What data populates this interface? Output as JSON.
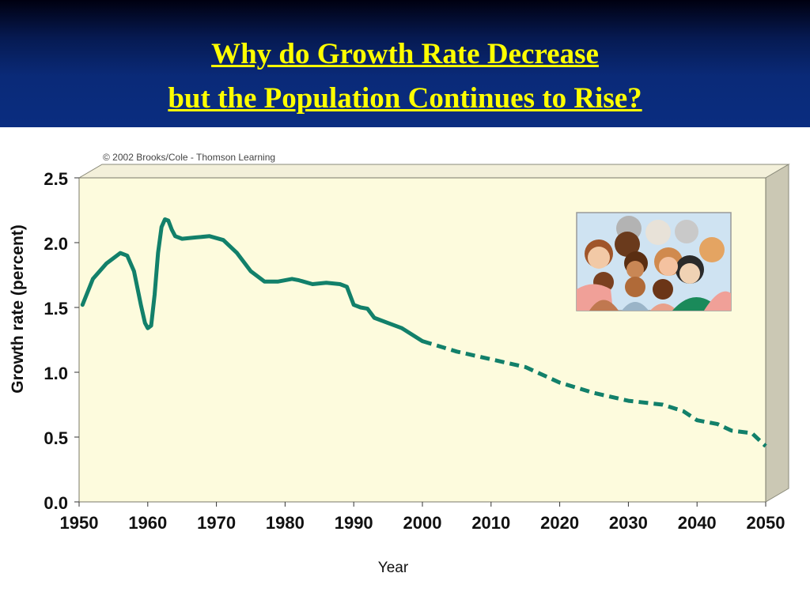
{
  "slide": {
    "title_line1": "Why do Growth Rate Decrease",
    "title_line2": "but the Population Continues to Rise?"
  },
  "colors": {
    "band": "#0a2a78",
    "title": "#ffff00",
    "plot_bg": "#fdfbdd",
    "line": "#12806a"
  },
  "illustration": {
    "icon": "crowd-of-people-icon"
  },
  "chart_data": {
    "type": "line",
    "title": "",
    "copyright": "© 2002 Brooks/Cole - Thomson Learning",
    "xlabel": "Year",
    "ylabel": "Growth rate (percent)",
    "xlim": [
      1950,
      2050
    ],
    "ylim": [
      0,
      2.5
    ],
    "xticks": [
      "1950",
      "1960",
      "1970",
      "1980",
      "1990",
      "2000",
      "2010",
      "2020",
      "2030",
      "2040",
      "2050"
    ],
    "yticks": [
      "0.0",
      "0.5",
      "1.0",
      "1.5",
      "2.0",
      "2.5"
    ],
    "grid": false,
    "series": [
      {
        "style": "solid",
        "x": [
          1950.5,
          1952,
          1954,
          1956,
          1957,
          1958,
          1959,
          1959.6,
          1960,
          1960.5,
          1961,
          1961.5,
          1962,
          1962.5,
          1963,
          1963.5,
          1964,
          1965,
          1967,
          1969,
          1971,
          1973,
          1975,
          1977,
          1979,
          1981,
          1982,
          1984,
          1986,
          1988,
          1989,
          1990,
          1991,
          1992,
          1993,
          1995,
          1997,
          2000
        ],
        "y": [
          1.52,
          1.72,
          1.84,
          1.92,
          1.9,
          1.78,
          1.52,
          1.38,
          1.34,
          1.36,
          1.6,
          1.92,
          2.12,
          2.18,
          2.17,
          2.1,
          2.05,
          2.03,
          2.04,
          2.05,
          2.02,
          1.92,
          1.78,
          1.7,
          1.7,
          1.72,
          1.71,
          1.68,
          1.69,
          1.68,
          1.66,
          1.52,
          1.5,
          1.49,
          1.42,
          1.38,
          1.34,
          1.24
        ]
      },
      {
        "style": "dashed",
        "x": [
          2000,
          2005,
          2010,
          2015,
          2020,
          2025,
          2030,
          2035,
          2038,
          2040,
          2043,
          2045,
          2048,
          2050
        ],
        "y": [
          1.24,
          1.16,
          1.1,
          1.04,
          0.92,
          0.84,
          0.78,
          0.75,
          0.7,
          0.63,
          0.6,
          0.55,
          0.53,
          0.43
        ]
      }
    ]
  }
}
